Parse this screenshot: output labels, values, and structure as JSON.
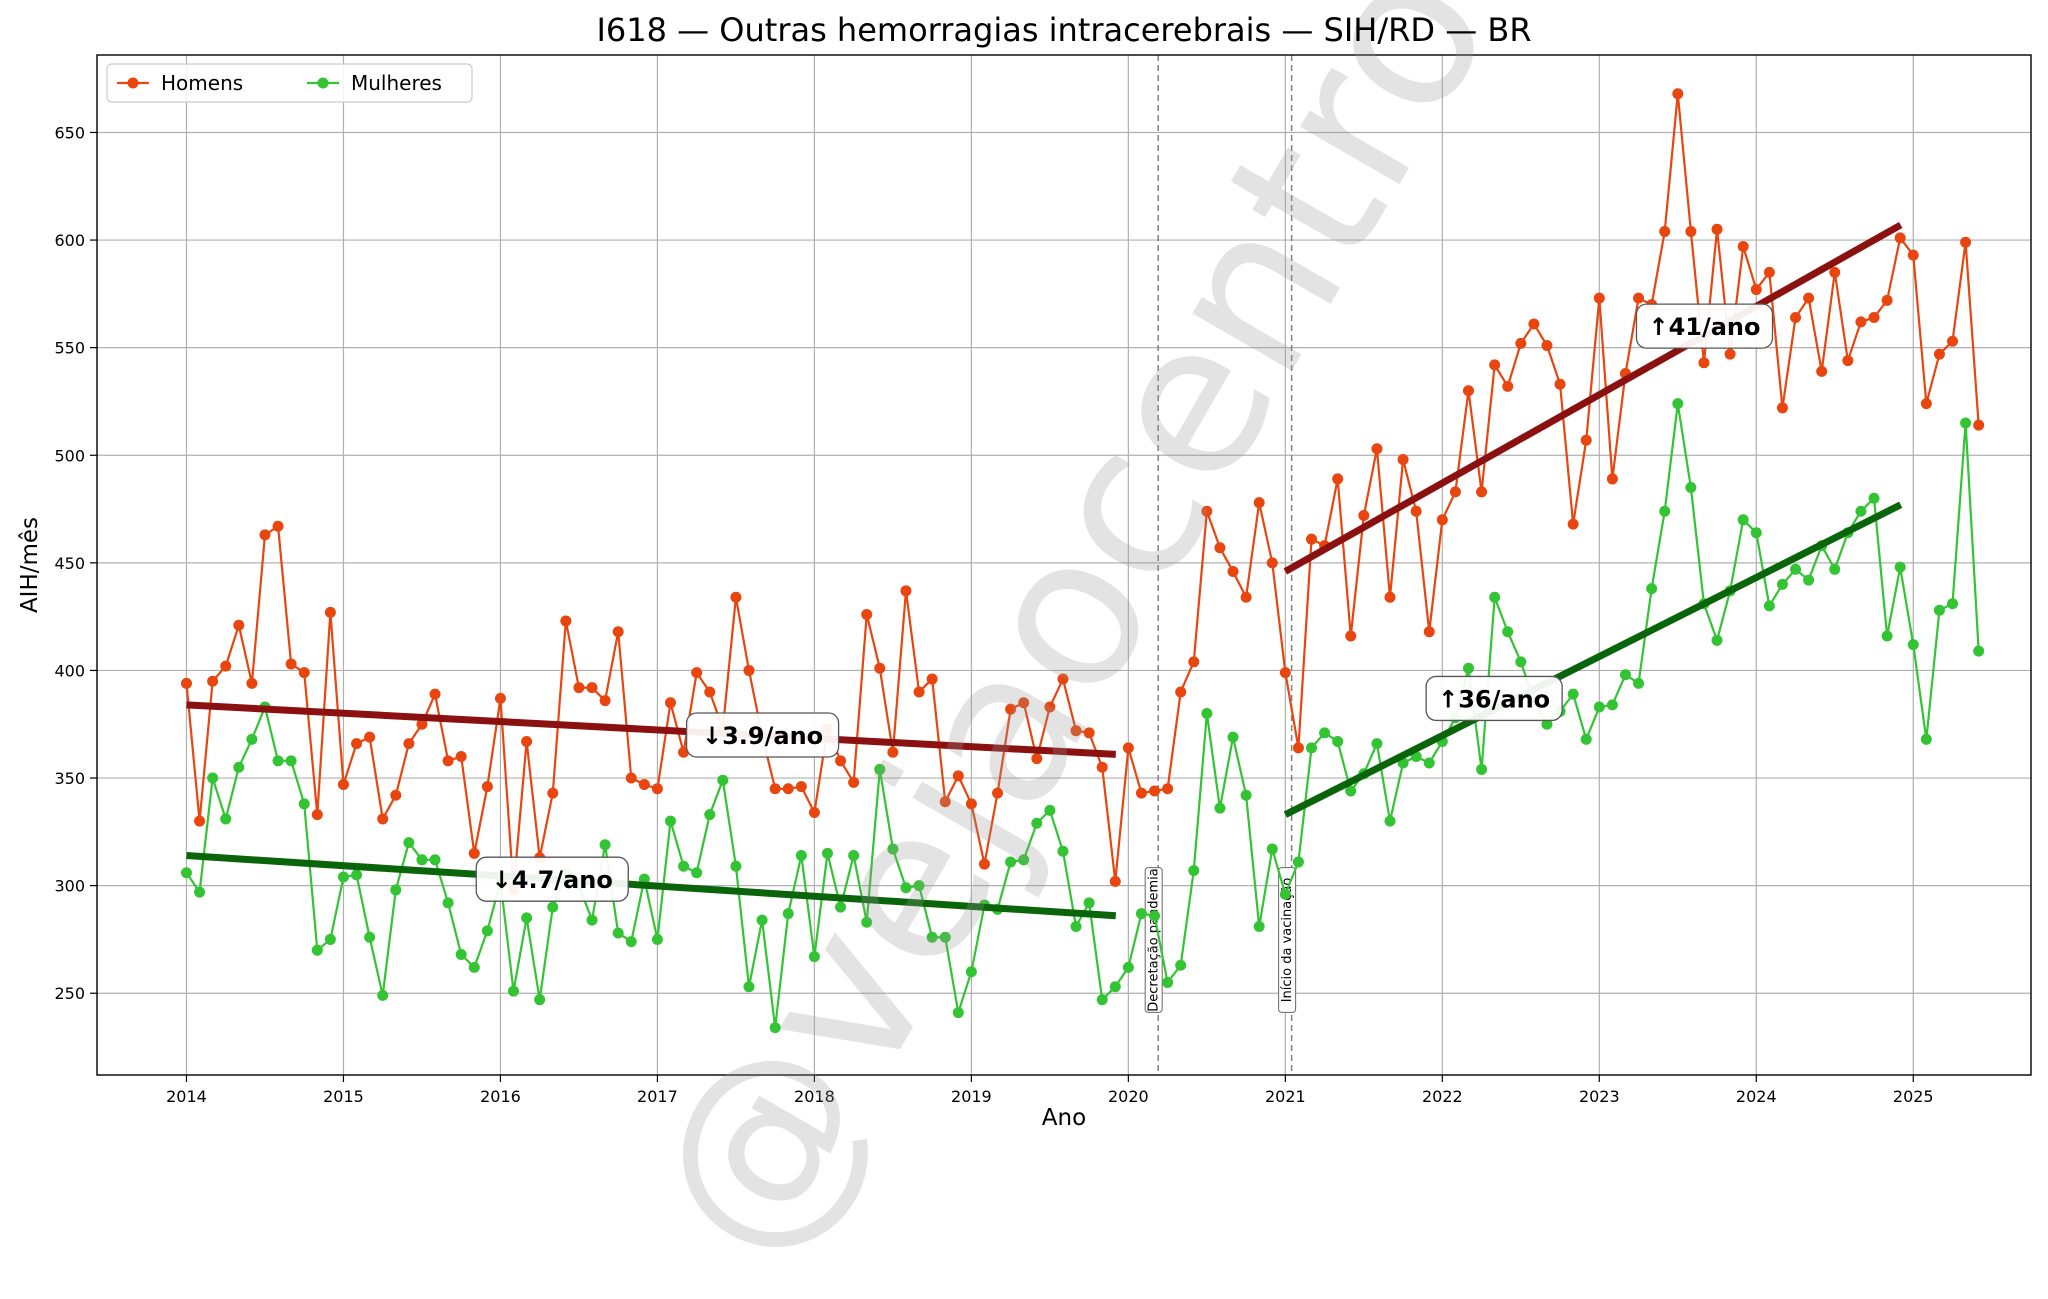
{
  "chart_data": {
    "type": "line",
    "title": "I618 — Outras hemorragias intracerebrais — SIH/RD — BR",
    "xlabel": "Ano",
    "ylabel": "AIH/mês",
    "xlim": [
      2013.43,
      2025.75
    ],
    "ylim": [
      212,
      686
    ],
    "x_ticks": [
      2014,
      2015,
      2016,
      2017,
      2018,
      2019,
      2020,
      2021,
      2022,
      2023,
      2024,
      2025
    ],
    "y_ticks": [
      250,
      300,
      350,
      400,
      450,
      500,
      550,
      600,
      650
    ],
    "grid": true,
    "legend_position": "top-left",
    "watermark": "@vejaocentro",
    "series": [
      {
        "name": "Homens",
        "color": "#e8450f",
        "start": "2014-01",
        "values": [
          394,
          330,
          395,
          402,
          421,
          394,
          463,
          467,
          403,
          399,
          333,
          427,
          347,
          366,
          369,
          331,
          342,
          366,
          375,
          389,
          358,
          360,
          315,
          346,
          387,
          298,
          367,
          313,
          343,
          423,
          392,
          392,
          386,
          418,
          350,
          347,
          345,
          385,
          362,
          399,
          390,
          373,
          434,
          400,
          370,
          345,
          345,
          346,
          334,
          373,
          358,
          348,
          426,
          401,
          362,
          437,
          390,
          396,
          339,
          351,
          338,
          310,
          343,
          382,
          385,
          359,
          383,
          396,
          372,
          371,
          355,
          302,
          364,
          343,
          344,
          345,
          390,
          404,
          474,
          457,
          446,
          434,
          478,
          450,
          399,
          364,
          461,
          458,
          489,
          416,
          472,
          503,
          434,
          498,
          474,
          418,
          470,
          483,
          530,
          483,
          542,
          532,
          552,
          561,
          551,
          533,
          468,
          507,
          573,
          489,
          538,
          573,
          570,
          604,
          668,
          604,
          543,
          605,
          547,
          597,
          577,
          585,
          522,
          564,
          573,
          539,
          585,
          544,
          562,
          564,
          572,
          601,
          593,
          524,
          547,
          553,
          599,
          514
        ]
      },
      {
        "name": "Mulheres",
        "color": "#33c433",
        "start": "2014-01",
        "values": [
          306,
          297,
          350,
          331,
          355,
          368,
          383,
          358,
          358,
          338,
          270,
          275,
          304,
          305,
          276,
          249,
          298,
          320,
          312,
          312,
          292,
          268,
          262,
          279,
          302,
          251,
          285,
          247,
          290,
          306,
          300,
          284,
          319,
          278,
          274,
          303,
          275,
          330,
          309,
          306,
          333,
          349,
          309,
          253,
          284,
          234,
          287,
          314,
          267,
          315,
          290,
          314,
          283,
          354,
          317,
          299,
          300,
          276,
          276,
          241,
          260,
          291,
          289,
          311,
          312,
          329,
          335,
          316,
          281,
          292,
          247,
          253,
          262,
          287,
          286,
          255,
          263,
          307,
          380,
          336,
          369,
          342,
          281,
          317,
          296,
          311,
          364,
          371,
          367,
          344,
          352,
          366,
          330,
          357,
          360,
          357,
          367,
          378,
          401,
          354,
          434,
          418,
          404,
          386,
          375,
          381,
          389,
          368,
          383,
          384,
          398,
          394,
          438,
          474,
          524,
          485,
          431,
          414,
          437,
          470,
          464,
          430,
          440,
          447,
          442,
          458,
          447,
          464,
          474,
          480,
          416,
          448,
          412,
          368,
          428,
          431,
          515,
          409
        ]
      }
    ],
    "trend_lines": [
      {
        "series": "Homens",
        "color": "#8b1010",
        "x": [
          2014.0,
          2019.92
        ],
        "y": [
          384,
          361
        ]
      },
      {
        "series": "Mulheres",
        "color": "#0a640a",
        "x": [
          2014.0,
          2019.92
        ],
        "y": [
          314,
          286
        ]
      },
      {
        "series": "Homens",
        "color": "#8b1010",
        "x": [
          2021.0,
          2024.92
        ],
        "y": [
          446,
          607
        ]
      },
      {
        "series": "Mulheres",
        "color": "#0a640a",
        "x": [
          2021.0,
          2024.92
        ],
        "y": [
          333,
          477
        ]
      }
    ],
    "annotations": [
      {
        "text": "↓3.9/ano",
        "x": 2017.67,
        "y": 370
      },
      {
        "text": "↓4.7/ano",
        "x": 2016.33,
        "y": 303
      },
      {
        "text": "↑41/ano",
        "x": 2023.67,
        "y": 560
      },
      {
        "text": "↑36/ano",
        "x": 2022.33,
        "y": 387
      }
    ],
    "events": [
      {
        "label": "Decretação pandemia",
        "x": 2020.19
      },
      {
        "label": "Início da vacinação",
        "x": 2021.04
      }
    ]
  }
}
